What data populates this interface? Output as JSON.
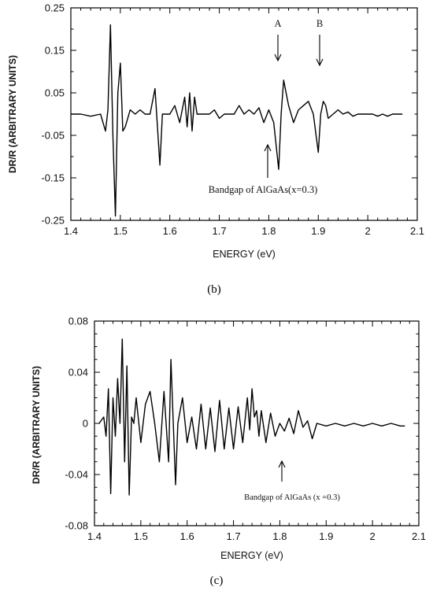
{
  "chart_data": [
    {
      "type": "line",
      "panel_label": "(b)",
      "xlabel": "ENERGY (eV)",
      "ylabel": "DR/R (ARBITRARY UNITS)",
      "xlim": [
        1.4,
        2.1
      ],
      "ylim": [
        -0.25,
        0.25
      ],
      "x_ticks": [
        1.4,
        1.5,
        1.6,
        1.7,
        1.8,
        1.9,
        2.0,
        2.1
      ],
      "x_tick_labels": [
        "1.4",
        "1.5",
        "1.6",
        "1.7",
        "1.8",
        "1.9",
        "2",
        "2.1"
      ],
      "y_ticks": [
        0.25,
        0.15,
        0.05,
        -0.05,
        -0.15,
        -0.25
      ],
      "y_tick_labels": [
        "0.25",
        "0.15",
        "0.05",
        "-0.05",
        "-0.15",
        "-0.25"
      ],
      "grid": false,
      "series": [
        {
          "x": [
            1.4,
            1.42,
            1.44,
            1.46,
            1.47,
            1.475,
            1.48,
            1.485,
            1.49,
            1.495,
            1.5,
            1.505,
            1.51,
            1.52,
            1.53,
            1.54,
            1.55,
            1.56,
            1.57,
            1.575,
            1.58,
            1.585,
            1.59,
            1.6,
            1.61,
            1.62,
            1.63,
            1.635,
            1.64,
            1.645,
            1.65,
            1.655,
            1.66,
            1.67,
            1.68,
            1.69,
            1.7,
            1.71,
            1.72,
            1.73,
            1.74,
            1.75,
            1.76,
            1.77,
            1.78,
            1.79,
            1.8,
            1.81,
            1.82,
            1.825,
            1.83,
            1.835,
            1.84,
            1.85,
            1.86,
            1.87,
            1.88,
            1.89,
            1.9,
            1.905,
            1.91,
            1.915,
            1.92,
            1.93,
            1.94,
            1.95,
            1.96,
            1.97,
            1.98,
            1.99,
            2.0,
            2.01,
            2.02,
            2.03,
            2.04,
            2.05,
            2.06,
            2.07
          ],
          "y": [
            0.0,
            0.0,
            -0.005,
            0.0,
            -0.04,
            0.01,
            0.21,
            -0.05,
            -0.24,
            0.05,
            0.12,
            -0.04,
            -0.03,
            0.01,
            0.0,
            0.01,
            0.0,
            0.0,
            0.06,
            -0.03,
            -0.12,
            0.0,
            0.0,
            0.0,
            0.02,
            -0.02,
            0.04,
            -0.03,
            0.05,
            -0.04,
            0.04,
            0.0,
            0.0,
            0.0,
            0.0,
            0.01,
            -0.01,
            0.0,
            0.0,
            0.0,
            0.02,
            0.0,
            0.01,
            0.0,
            0.015,
            -0.02,
            0.01,
            -0.02,
            -0.13,
            0.0,
            0.08,
            0.05,
            0.02,
            -0.02,
            0.01,
            0.02,
            0.03,
            0.0,
            -0.09,
            0.0,
            0.03,
            0.02,
            -0.01,
            0.0,
            0.01,
            0.0,
            0.005,
            -0.005,
            0.0,
            0.0,
            0.0,
            0.0,
            -0.005,
            0.0,
            -0.005,
            0.0,
            0.0,
            0.0
          ]
        }
      ],
      "annotations": [
        {
          "text": "A",
          "x": 1.82,
          "direction": "down"
        },
        {
          "text": "B",
          "x": 1.905,
          "direction": "down"
        },
        {
          "text": "Bandgap of AlGaAs(x=0.3)",
          "x": 1.8,
          "direction": "up"
        }
      ]
    },
    {
      "type": "line",
      "panel_label": "(c)",
      "xlabel": "ENERGY (eV)",
      "ylabel": "DR/R (ARBITRARY UNITS)",
      "xlim": [
        1.4,
        2.1
      ],
      "ylim": [
        -0.08,
        0.08
      ],
      "x_ticks": [
        1.4,
        1.5,
        1.6,
        1.7,
        1.8,
        1.9,
        2.0,
        2.1
      ],
      "x_tick_labels": [
        "1.4",
        "1.5",
        "1.6",
        "1.7",
        "1.8",
        "1.9",
        "2",
        "2.1"
      ],
      "y_ticks": [
        0.08,
        0.04,
        0.0,
        -0.04,
        -0.08
      ],
      "y_tick_labels": [
        "0.08",
        "0.04",
        "0",
        "-0.04",
        "-0.08"
      ],
      "grid": false,
      "series": [
        {
          "x": [
            1.41,
            1.42,
            1.425,
            1.43,
            1.435,
            1.44,
            1.445,
            1.45,
            1.455,
            1.46,
            1.465,
            1.47,
            1.475,
            1.48,
            1.485,
            1.49,
            1.5,
            1.51,
            1.52,
            1.53,
            1.54,
            1.55,
            1.56,
            1.565,
            1.57,
            1.575,
            1.58,
            1.59,
            1.6,
            1.61,
            1.62,
            1.63,
            1.64,
            1.65,
            1.66,
            1.67,
            1.68,
            1.69,
            1.7,
            1.71,
            1.72,
            1.73,
            1.735,
            1.74,
            1.745,
            1.75,
            1.755,
            1.76,
            1.77,
            1.78,
            1.79,
            1.8,
            1.81,
            1.82,
            1.83,
            1.84,
            1.85,
            1.86,
            1.87,
            1.88,
            1.9,
            1.92,
            1.94,
            1.96,
            1.98,
            2.0,
            2.02,
            2.04,
            2.06,
            2.07
          ],
          "y": [
            0.0,
            0.005,
            -0.01,
            0.027,
            -0.055,
            0.02,
            -0.01,
            0.035,
            0.0,
            0.066,
            -0.03,
            0.045,
            -0.056,
            0.005,
            0.0,
            0.02,
            -0.015,
            0.015,
            0.025,
            0.0,
            -0.03,
            0.025,
            -0.03,
            0.05,
            0.0,
            -0.048,
            0.0,
            0.02,
            -0.015,
            0.005,
            -0.02,
            0.015,
            -0.02,
            0.012,
            -0.022,
            0.018,
            -0.02,
            0.012,
            -0.02,
            0.013,
            -0.015,
            0.02,
            -0.005,
            0.027,
            0.005,
            0.01,
            -0.01,
            0.01,
            -0.015,
            0.008,
            -0.01,
            0.0,
            -0.006,
            0.004,
            -0.008,
            0.01,
            -0.003,
            0.002,
            -0.012,
            0.0,
            -0.002,
            0.0,
            -0.002,
            0.0,
            -0.002,
            0.0,
            -0.002,
            0.0,
            -0.002,
            -0.002
          ]
        }
      ],
      "annotations": [
        {
          "text": "Bandgap of AlGaAs (x =0.3)",
          "x": 1.8,
          "direction": "up"
        }
      ]
    }
  ]
}
